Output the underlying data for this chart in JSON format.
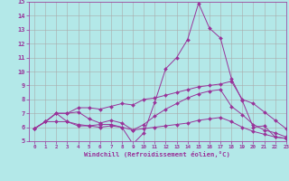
{
  "xlabel": "Windchill (Refroidissement éolien,°C)",
  "ylabel": "",
  "background_color": "#b3e8e8",
  "line_color": "#993399",
  "grid_color": "#aaaaaa",
  "xlim": [
    -0.5,
    23
  ],
  "ylim": [
    5,
    15
  ],
  "yticks": [
    5,
    6,
    7,
    8,
    9,
    10,
    11,
    12,
    13,
    14,
    15
  ],
  "xticks": [
    0,
    1,
    2,
    3,
    4,
    5,
    6,
    7,
    8,
    9,
    10,
    11,
    12,
    13,
    14,
    15,
    16,
    17,
    18,
    19,
    20,
    21,
    22,
    23
  ],
  "lines": [
    {
      "x": [
        0,
        1,
        2,
        3,
        4,
        5,
        6,
        7,
        8,
        9,
        10,
        11,
        12,
        13,
        14,
        15,
        16,
        17,
        18,
        19,
        20,
        21,
        22,
        23
      ],
      "y": [
        5.9,
        6.4,
        7.0,
        6.4,
        6.2,
        6.1,
        6.2,
        6.2,
        6.0,
        4.8,
        5.6,
        7.8,
        10.2,
        11.0,
        12.3,
        14.9,
        13.1,
        12.4,
        9.5,
        7.9,
        6.0,
        6.1,
        5.3,
        5.2
      ]
    },
    {
      "x": [
        0,
        1,
        2,
        3,
        4,
        5,
        6,
        7,
        8,
        9,
        10,
        11,
        12,
        13,
        14,
        15,
        16,
        17,
        18,
        19,
        20,
        21,
        22,
        23
      ],
      "y": [
        5.9,
        6.4,
        7.0,
        7.0,
        7.4,
        7.4,
        7.3,
        7.5,
        7.7,
        7.6,
        8.0,
        8.1,
        8.3,
        8.5,
        8.7,
        8.9,
        9.0,
        9.1,
        9.3,
        8.0,
        7.7,
        7.1,
        6.5,
        5.9
      ]
    },
    {
      "x": [
        0,
        1,
        2,
        3,
        4,
        5,
        6,
        7,
        8,
        9,
        10,
        11,
        12,
        13,
        14,
        15,
        16,
        17,
        18,
        19,
        20,
        21,
        22,
        23
      ],
      "y": [
        5.9,
        6.4,
        7.0,
        7.0,
        7.1,
        6.6,
        6.3,
        6.5,
        6.3,
        5.8,
        6.2,
        6.8,
        7.3,
        7.7,
        8.1,
        8.4,
        8.6,
        8.7,
        7.5,
        6.9,
        6.2,
        5.8,
        5.6,
        5.3
      ]
    },
    {
      "x": [
        0,
        1,
        2,
        3,
        4,
        5,
        6,
        7,
        8,
        9,
        10,
        11,
        12,
        13,
        14,
        15,
        16,
        17,
        18,
        19,
        20,
        21,
        22,
        23
      ],
      "y": [
        5.9,
        6.4,
        6.4,
        6.4,
        6.1,
        6.1,
        6.0,
        6.1,
        6.0,
        5.8,
        5.9,
        6.0,
        6.1,
        6.2,
        6.3,
        6.5,
        6.6,
        6.7,
        6.4,
        6.0,
        5.7,
        5.5,
        5.3,
        5.2
      ]
    }
  ]
}
